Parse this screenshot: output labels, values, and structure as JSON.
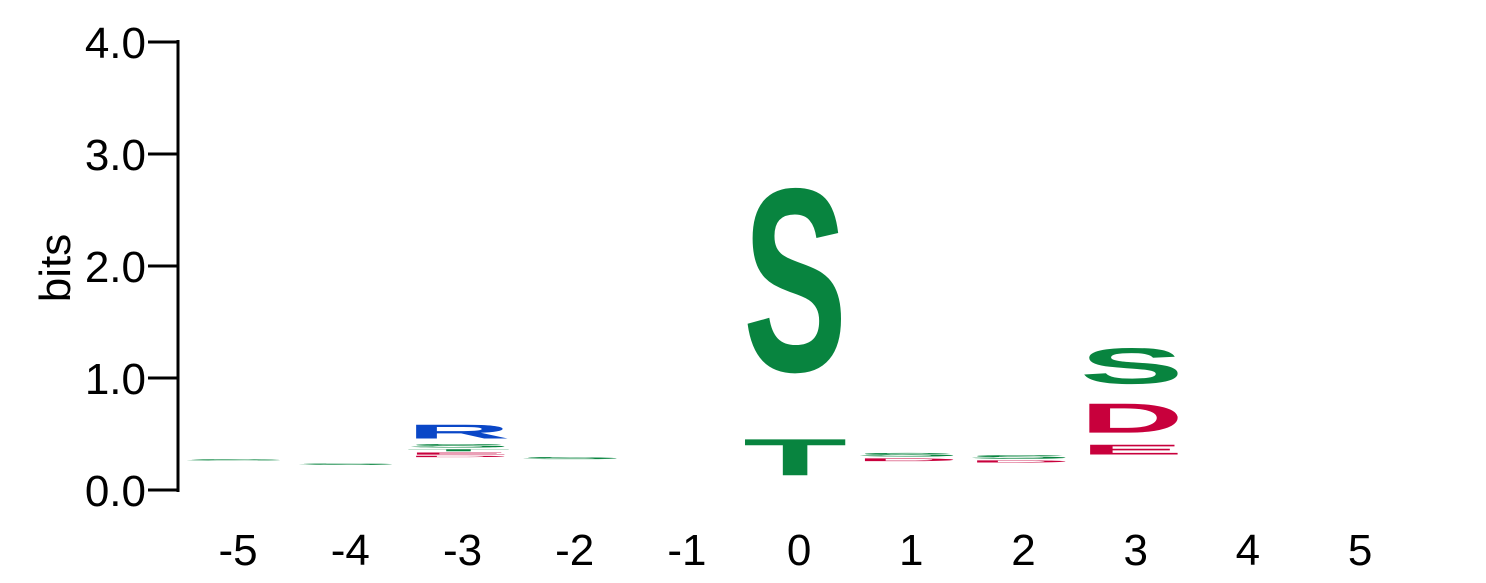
{
  "chart_data": {
    "type": "sequence-logo",
    "ylabel": "bits",
    "ylim": [
      0,
      4
    ],
    "yticks": [
      "0.0",
      "1.0",
      "2.0",
      "3.0",
      "4.0"
    ],
    "positions": [
      "-5",
      "-4",
      "-3",
      "-2",
      "-1",
      "0",
      "1",
      "2",
      "3",
      "4",
      "5"
    ],
    "colors": {
      "S": "#08843F",
      "T": "#08843F",
      "R": "#0A47C7",
      "D": "#C8003C",
      "E": "#C8003C"
    },
    "stacks": [
      {
        "position": "-5",
        "letters": [
          {
            "letter": "S",
            "bits": 0.02
          }
        ]
      },
      {
        "position": "-4",
        "letters": [
          {
            "letter": "S",
            "bits": 0.02
          }
        ]
      },
      {
        "position": "-3",
        "letters": [
          {
            "letter": "D",
            "bits": 0.02
          },
          {
            "letter": "E",
            "bits": 0.03
          },
          {
            "letter": "T",
            "bits": 0.03
          },
          {
            "letter": "S",
            "bits": 0.05
          },
          {
            "letter": "R",
            "bits": 0.2
          }
        ]
      },
      {
        "position": "-2",
        "letters": [
          {
            "letter": "S",
            "bits": 0.03
          }
        ]
      },
      {
        "position": "-1",
        "letters": []
      },
      {
        "position": "0",
        "letters": [
          {
            "letter": "T",
            "bits": 0.52
          },
          {
            "letter": "S",
            "bits": 2.62
          }
        ]
      },
      {
        "position": "1",
        "letters": [
          {
            "letter": "D",
            "bits": 0.04
          },
          {
            "letter": "S",
            "bits": 0.05
          }
        ]
      },
      {
        "position": "2",
        "letters": [
          {
            "letter": "D",
            "bits": 0.03
          },
          {
            "letter": "S",
            "bits": 0.05
          }
        ]
      },
      {
        "position": "3",
        "letters": [
          {
            "letter": "E",
            "bits": 0.14
          },
          {
            "letter": "D",
            "bits": 0.42
          },
          {
            "letter": "S",
            "bits": 0.51
          }
        ]
      },
      {
        "position": "4",
        "letters": []
      },
      {
        "position": "5",
        "letters": []
      }
    ],
    "baselines": [
      0.26,
      0.22,
      0.29,
      0.27,
      0.0,
      0.03,
      0.25,
      0.24,
      0.29,
      0.0,
      0.0
    ]
  }
}
